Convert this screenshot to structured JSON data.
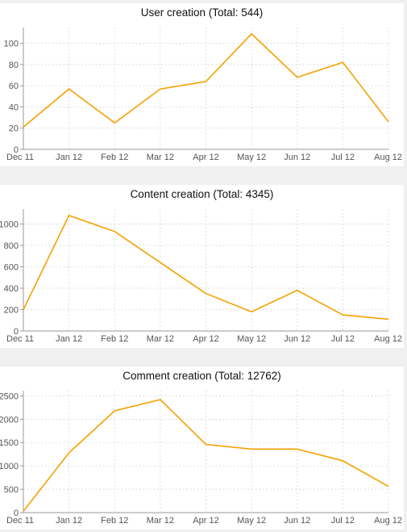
{
  "chart_data": [
    {
      "type": "line",
      "title": "User creation (Total: 544)",
      "categories": [
        "Dec 11",
        "Jan 12",
        "Feb 12",
        "Mar 12",
        "Apr 12",
        "May 12",
        "Jun 12",
        "Jul 12",
        "Aug 12"
      ],
      "series": [
        {
          "values": [
            21,
            57,
            25,
            57,
            64,
            109,
            68,
            82,
            26
          ]
        }
      ],
      "yticks": [
        0,
        20,
        40,
        60,
        80,
        100
      ],
      "ylim": [
        0,
        115
      ],
      "grid": true,
      "line_color": "#f5a100"
    },
    {
      "type": "line",
      "title": "Content creation (Total: 4345)",
      "categories": [
        "Dec 11",
        "Jan 12",
        "Feb 12",
        "Mar 12",
        "Apr 12",
        "May 12",
        "Jun 12",
        "Jul 12",
        "Aug 12"
      ],
      "series": [
        {
          "values": [
            200,
            1080,
            930,
            640,
            350,
            180,
            380,
            150,
            110
          ]
        }
      ],
      "yticks": [
        0,
        200,
        400,
        600,
        800,
        1000
      ],
      "ylim": [
        0,
        1140
      ],
      "grid": true,
      "line_color": "#f5a100"
    },
    {
      "type": "line",
      "title": "Comment creation (Total: 12762)",
      "categories": [
        "Dec 11",
        "Jan 12",
        "Feb 12",
        "Mar 12",
        "Apr 12",
        "May 12",
        "Jun 12",
        "Jul 12",
        "Aug 12"
      ],
      "series": [
        {
          "values": [
            30,
            1280,
            2180,
            2420,
            1460,
            1360,
            1360,
            1110,
            560
          ]
        }
      ],
      "yticks": [
        0,
        500,
        1000,
        1500,
        2000,
        2500
      ],
      "ylim": [
        0,
        2610
      ],
      "grid": true,
      "line_color": "#f5a100"
    }
  ]
}
